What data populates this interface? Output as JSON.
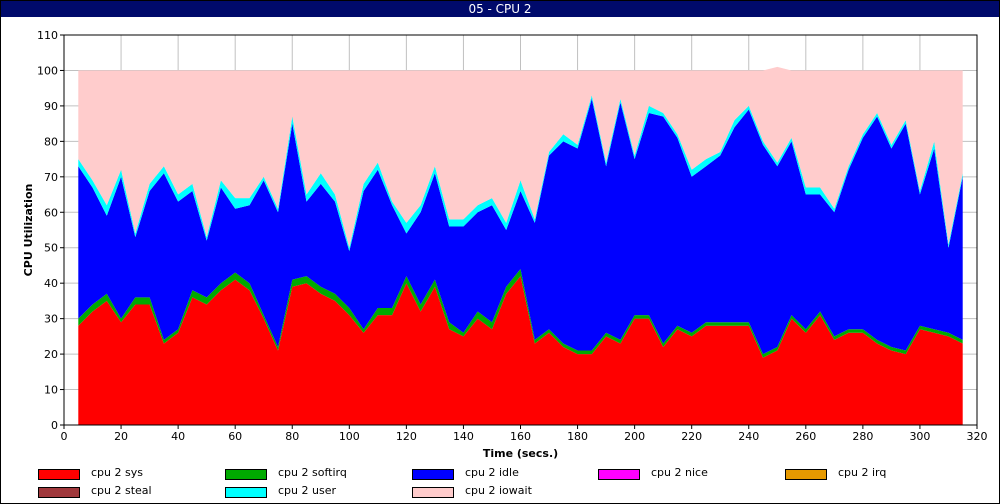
{
  "window": {
    "title": "05 - CPU 2"
  },
  "chart_data": {
    "type": "area",
    "stacked": true,
    "title": "05 - CPU 2",
    "xlabel": "Time (secs.)",
    "ylabel": "CPU Utilization",
    "xlim": [
      0,
      320
    ],
    "ylim": [
      0,
      110
    ],
    "xticks": [
      0,
      20,
      40,
      60,
      80,
      100,
      120,
      140,
      160,
      180,
      200,
      220,
      240,
      260,
      280,
      300,
      320
    ],
    "yticks": [
      0,
      10,
      20,
      30,
      40,
      50,
      60,
      70,
      80,
      90,
      100,
      110
    ],
    "grid": true,
    "legend_position": "bottom",
    "x": [
      5,
      10,
      15,
      20,
      25,
      30,
      35,
      40,
      45,
      50,
      55,
      60,
      65,
      70,
      75,
      80,
      85,
      90,
      95,
      100,
      105,
      110,
      115,
      120,
      125,
      130,
      135,
      140,
      145,
      150,
      155,
      160,
      165,
      170,
      175,
      180,
      185,
      190,
      195,
      200,
      205,
      210,
      215,
      220,
      225,
      230,
      235,
      240,
      245,
      250,
      255,
      260,
      265,
      270,
      275,
      280,
      285,
      290,
      295,
      300,
      305,
      310,
      315
    ],
    "series": [
      {
        "name": "cpu 2 sys",
        "color": "#ff0000",
        "values": [
          28,
          32,
          35,
          29,
          34,
          34,
          23,
          26,
          36,
          34,
          38,
          41,
          38,
          30,
          21,
          39,
          40,
          37,
          35,
          31,
          26,
          31,
          31,
          40,
          32,
          39,
          27,
          25,
          30,
          27,
          37,
          42,
          23,
          26,
          22,
          20,
          20,
          25,
          23,
          30,
          30,
          22,
          27,
          25,
          28,
          28,
          28,
          28,
          19,
          21,
          30,
          26,
          31,
          24,
          26,
          26,
          23,
          21,
          20,
          27,
          26,
          25,
          23
        ]
      },
      {
        "name": "cpu 2 softirq",
        "color": "#00aa00",
        "values": [
          2,
          2,
          2,
          1,
          2,
          2,
          1,
          1,
          2,
          2,
          2,
          2,
          2,
          1,
          1,
          2,
          2,
          2,
          2,
          2,
          1,
          2,
          2,
          2,
          2,
          2,
          2,
          1,
          2,
          2,
          2,
          2,
          1,
          1,
          1,
          1,
          1,
          1,
          1,
          1,
          1,
          1,
          1,
          1,
          1,
          1,
          1,
          1,
          1,
          1,
          1,
          1,
          1,
          1,
          1,
          1,
          1,
          1,
          1,
          1,
          1,
          1,
          1
        ]
      },
      {
        "name": "cpu 2 idle",
        "color": "#0000ff",
        "values": [
          43,
          33,
          22,
          40,
          17,
          30,
          47,
          36,
          28,
          16,
          27,
          18,
          22,
          38,
          38,
          44,
          21,
          29,
          26,
          16,
          39,
          39,
          29,
          12,
          26,
          30,
          27,
          30,
          28,
          33,
          16,
          22,
          33,
          49,
          57,
          57,
          71,
          47,
          67,
          44,
          57,
          64,
          53,
          44,
          44,
          47,
          55,
          60,
          59,
          51,
          49,
          38,
          33,
          35,
          45,
          54,
          63,
          56,
          64,
          37,
          51,
          24,
          46
        ]
      },
      {
        "name": "cpu 2 nice",
        "color": "#ff00ff",
        "values": [
          0,
          0,
          0,
          0,
          0,
          0,
          0,
          0,
          0,
          0,
          0,
          0,
          0,
          0,
          0,
          0,
          0,
          0,
          0,
          0,
          0,
          0,
          0,
          0,
          0,
          0,
          0,
          0,
          0,
          0,
          0,
          0,
          0,
          0,
          0,
          0,
          0,
          0,
          0,
          0,
          0,
          0,
          0,
          0,
          0,
          0,
          0,
          0,
          0,
          0,
          0,
          0,
          0,
          0,
          0,
          0,
          0,
          0,
          0,
          0,
          0,
          0,
          0
        ]
      },
      {
        "name": "cpu 2 irq",
        "color": "#e69900",
        "values": [
          0,
          0,
          0,
          0,
          0,
          0,
          0,
          0,
          0,
          0,
          0,
          0,
          0,
          0,
          0,
          0,
          0,
          0,
          0,
          0,
          0,
          0,
          0,
          0,
          0,
          0,
          0,
          0,
          0,
          0,
          0,
          0,
          0,
          0,
          0,
          0,
          0,
          0,
          0,
          0,
          0,
          0,
          0,
          0,
          0,
          0,
          0,
          0,
          0,
          0,
          0,
          0,
          0,
          0,
          0,
          0,
          0,
          0,
          0,
          0,
          0,
          0,
          0
        ]
      },
      {
        "name": "cpu 2 steal",
        "color": "#a0383c",
        "values": [
          0,
          0,
          0,
          0,
          0,
          0,
          0,
          0,
          0,
          0,
          0,
          0,
          0,
          0,
          0,
          0,
          0,
          0,
          0,
          0,
          0,
          0,
          0,
          0,
          0,
          0,
          0,
          0,
          0,
          0,
          0,
          0,
          0,
          0,
          0,
          0,
          0,
          0,
          0,
          0,
          0,
          0,
          0,
          0,
          0,
          0,
          0,
          0,
          0,
          0,
          0,
          0,
          0,
          0,
          0,
          0,
          0,
          0,
          0,
          0,
          0,
          0,
          0
        ]
      },
      {
        "name": "cpu 2 user",
        "color": "#00ffff",
        "values": [
          2,
          2,
          3,
          2,
          1,
          2,
          2,
          2,
          2,
          1,
          2,
          3,
          2,
          1,
          1,
          2,
          2,
          3,
          2,
          1,
          2,
          2,
          1,
          3,
          2,
          2,
          2,
          2,
          2,
          2,
          2,
          3,
          1,
          1,
          2,
          1,
          1,
          1,
          1,
          1,
          2,
          1,
          1,
          2,
          2,
          1,
          2,
          1,
          1,
          1,
          1,
          2,
          2,
          1,
          1,
          1,
          1,
          1,
          1,
          1,
          2,
          1,
          1
        ]
      },
      {
        "name": "cpu 2 iowait",
        "color": "#ffcccc",
        "values": [
          25,
          31,
          38,
          28,
          46,
          32,
          27,
          35,
          32,
          47,
          31,
          36,
          36,
          30,
          39,
          13,
          35,
          29,
          35,
          50,
          32,
          26,
          37,
          43,
          38,
          27,
          42,
          42,
          38,
          36,
          43,
          31,
          42,
          23,
          18,
          21,
          7,
          26,
          8,
          24,
          10,
          12,
          18,
          28,
          25,
          23,
          14,
          10,
          20,
          27,
          19,
          33,
          33,
          39,
          27,
          18,
          12,
          21,
          14,
          34,
          20,
          49,
          29
        ]
      }
    ]
  }
}
